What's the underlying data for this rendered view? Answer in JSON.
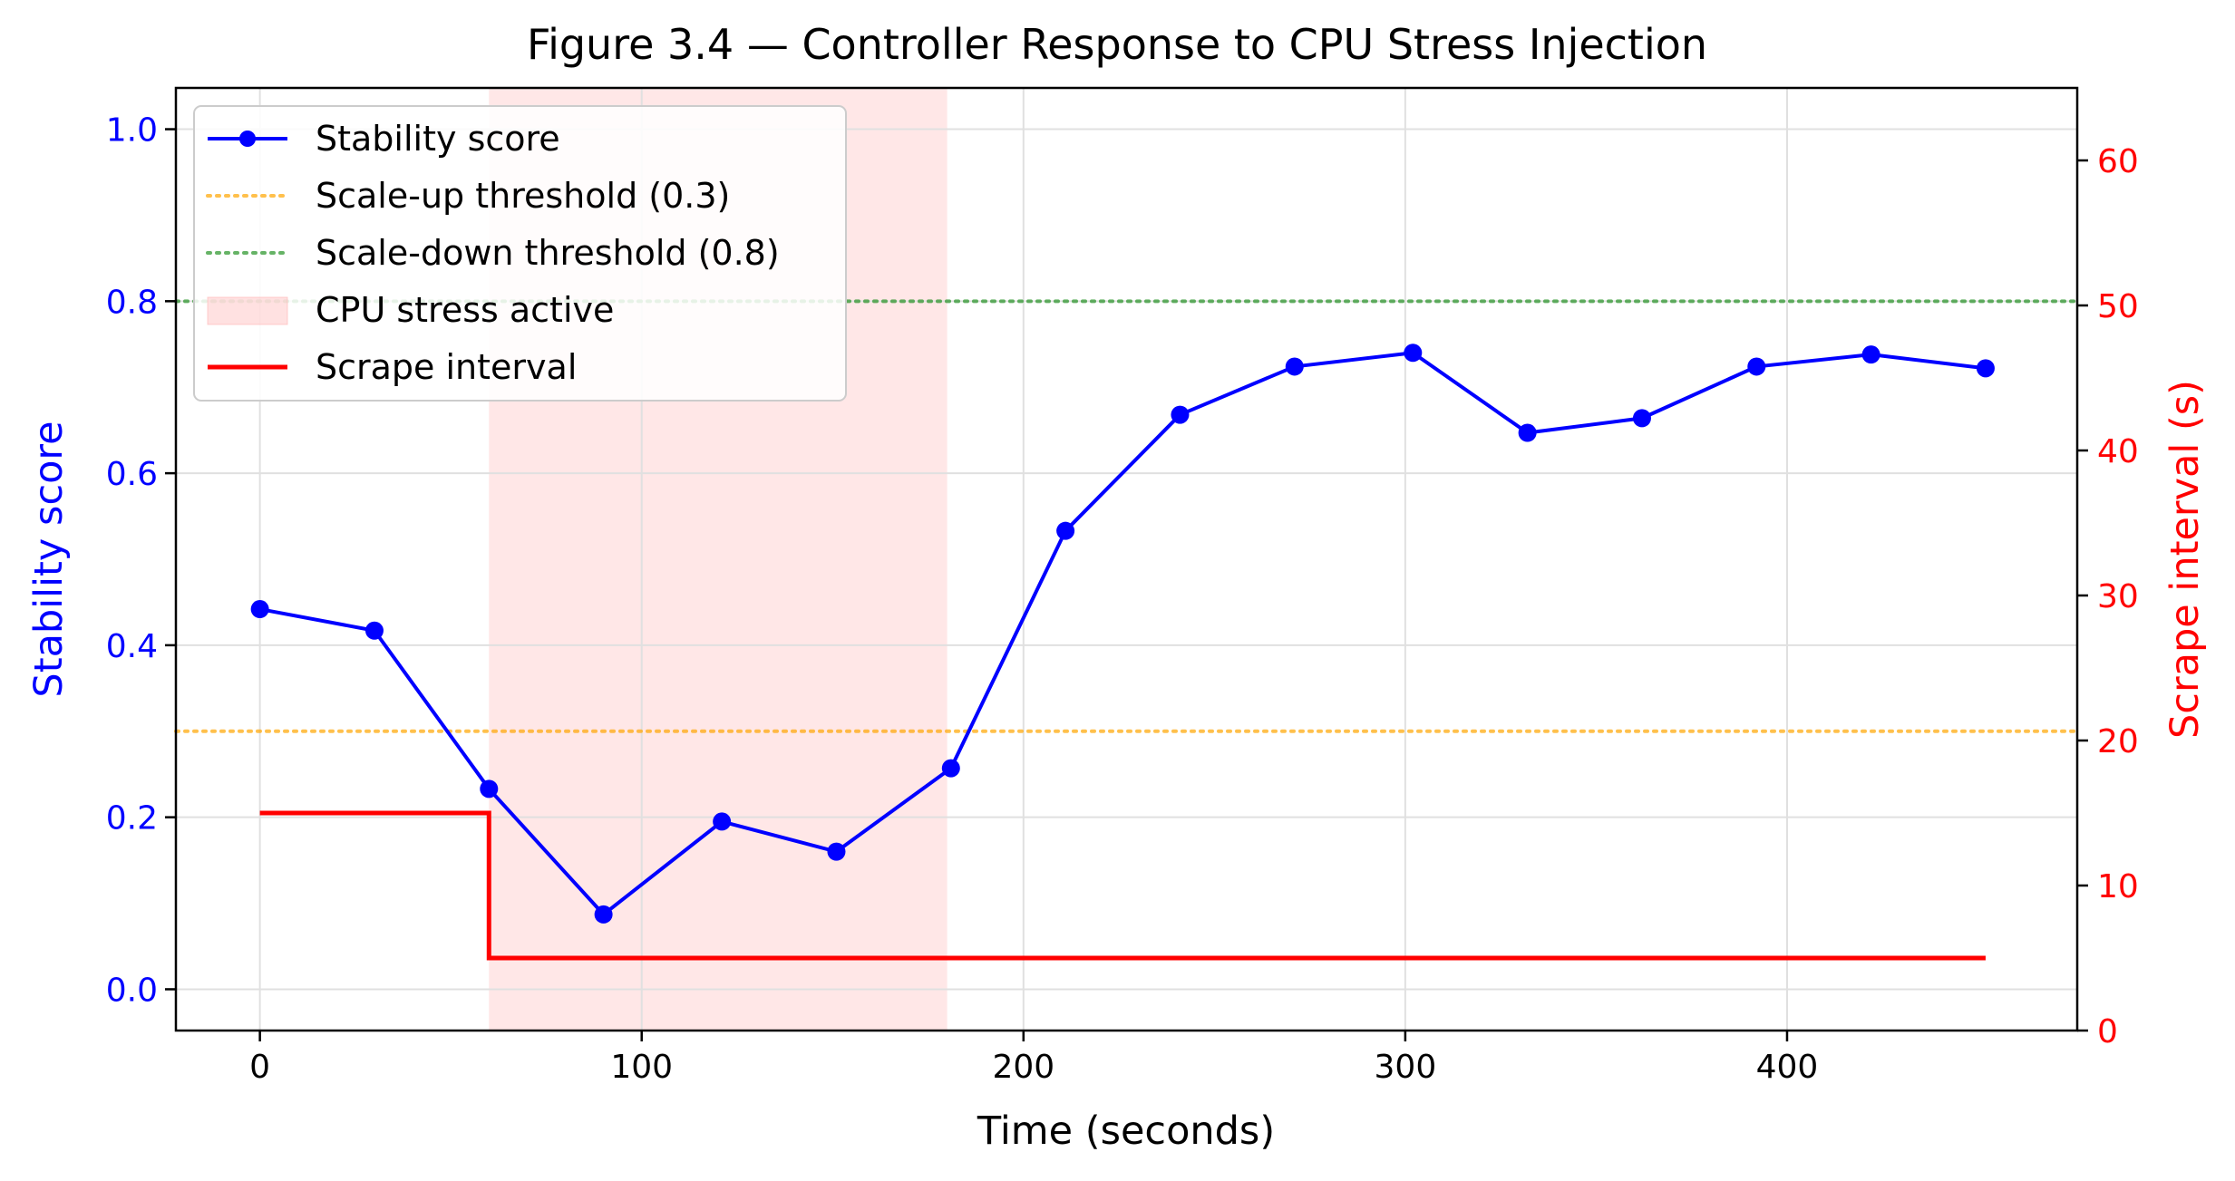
{
  "figure": {
    "title": "Figure 3.4 — Controller Response to CPU Stress Injection"
  },
  "colors": {
    "stability": "#0000ff",
    "scrape": "#ff0000",
    "scale_up": "#ffa500",
    "scale_down": "#008000",
    "stress": "#ffb3b3",
    "grid": "#e0e0e0",
    "axis": "#000000"
  },
  "chart_data": {
    "type": "line",
    "title": "Figure 3.4 — Controller Response to CPU Stress Injection",
    "xlabel": "Time (seconds)",
    "ylabel": "Stability score",
    "y2label": "Scrape interval (s)",
    "xlim": [
      -22,
      476
    ],
    "ylim": [
      -0.048,
      1.048
    ],
    "y2lim": [
      0,
      65
    ],
    "xticks": [
      0,
      100,
      200,
      300,
      400
    ],
    "yticks": [
      0.0,
      0.2,
      0.4,
      0.6,
      0.8,
      1.0
    ],
    "y2ticks": [
      0,
      10,
      20,
      30,
      40,
      50,
      60
    ],
    "xtick_labels": [
      "0",
      "100",
      "200",
      "300",
      "400"
    ],
    "ytick_labels": [
      "0.0",
      "0.2",
      "0.4",
      "0.6",
      "0.8",
      "1.0"
    ],
    "y2tick_labels": [
      "0",
      "10",
      "20",
      "30",
      "40",
      "50",
      "60"
    ],
    "grid": true,
    "legend_position": "upper-left",
    "series": [
      {
        "name": "Stability score",
        "axis": "left",
        "style": "line-marker",
        "x": [
          0,
          30,
          60,
          90,
          121,
          151,
          181,
          211,
          241,
          271,
          302,
          332,
          362,
          392,
          422,
          452
        ],
        "y": [
          0.442,
          0.417,
          0.233,
          0.087,
          0.195,
          0.16,
          0.257,
          0.533,
          0.668,
          0.724,
          0.74,
          0.647,
          0.664,
          0.724,
          0.738,
          0.722
        ]
      },
      {
        "name": "Scrape interval",
        "axis": "right",
        "style": "step",
        "x": [
          0,
          60,
          60,
          452
        ],
        "y": [
          15,
          15,
          5,
          5
        ]
      }
    ],
    "reference_lines": [
      {
        "name": "Scale-up threshold (0.3)",
        "axis": "left",
        "y": 0.3,
        "style": "dotted"
      },
      {
        "name": "Scale-down threshold (0.8)",
        "axis": "left",
        "y": 0.8,
        "style": "dotted"
      }
    ],
    "shaded_regions": [
      {
        "name": "CPU stress active",
        "x0": 60,
        "x1": 180
      }
    ],
    "legend": [
      "Stability score",
      "Scale-up threshold (0.3)",
      "Scale-down threshold (0.8)",
      "CPU stress active",
      "Scrape interval"
    ]
  }
}
